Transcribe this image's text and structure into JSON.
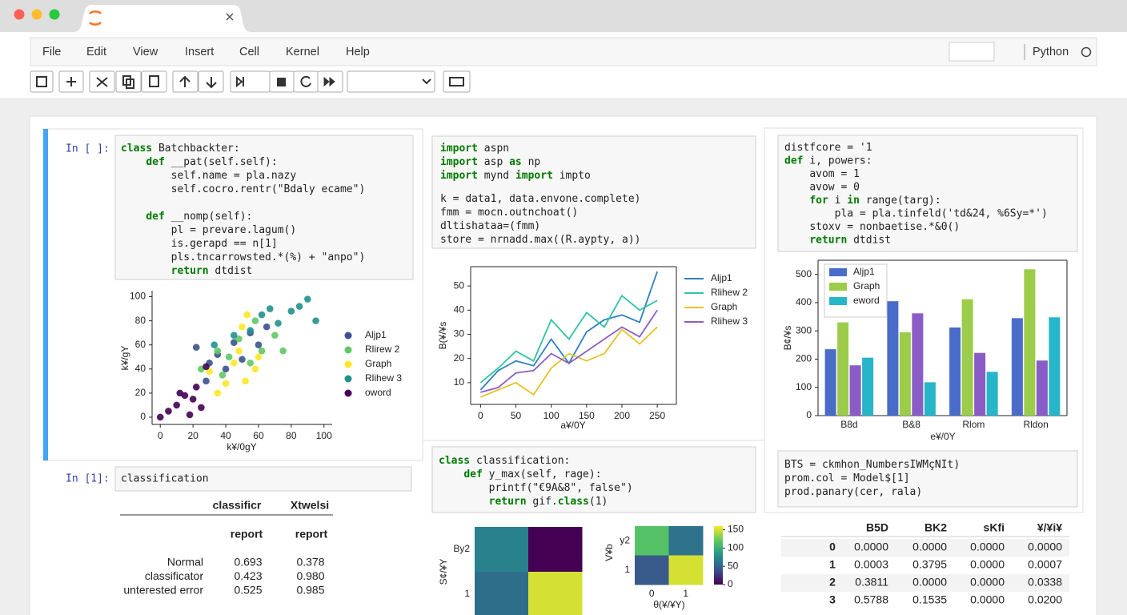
{
  "menu": [
    "File",
    "Edit",
    "View",
    "Insert",
    "Cell",
    "Kernel",
    "Help"
  ],
  "kernel": "Python",
  "cells": [
    {
      "prompt": "In [ ]:",
      "code": [
        [
          "class Batchbackter:",
          "    def __pat(self.self):",
          "        self.name = pla.nazy",
          "        self.cocro.rentr(\"Bdaly ecame\")"
        ],
        [
          "    def __nomp(self):",
          "        pl = prevare.lagum()",
          "        is.gerapd == n[1]",
          "        pls.tncarrowsted.*(%) + \"anpo\")",
          "        return dtdist"
        ]
      ]
    },
    {
      "code": [
        [
          "import aspn",
          "import asp as np",
          "import mynd import impto"
        ],
        [
          "k = data1, data.envone.complete)",
          "fmm = mocn.outnchoat()",
          "dltishataa=(fmm)",
          "store = nrnadd.max((R.aypty, a))"
        ]
      ]
    },
    {
      "code": [
        [
          "distfcore = '1",
          "def i, powers:",
          "    avom = 1",
          "    avow = 0",
          "    for i in range(targ):",
          "        pla = pla.tinfeld('td&24, %6Sy=*')",
          "    stoxv = nonbaetise.*&0()",
          "    return dtdist"
        ]
      ]
    },
    {
      "prompt": "In [1]:",
      "input": "classification"
    },
    {
      "code": [
        [
          "class classification:",
          "    def y_max(self, rage):",
          "        printf(\"€9A&8\", false\")",
          "        return gif.class(1)"
        ]
      ]
    },
    {
      "code": [
        [
          "BTS = ckmhon_NumbersIWMçNIt)",
          "prom.col = Model$[1]",
          "prod.panary(cer, rala)"
        ]
      ]
    }
  ],
  "report_table": {
    "columns": [
      "classificr",
      "Xtwelsi"
    ],
    "subheader": [
      "report",
      "report"
    ],
    "rows": [
      [
        "Normal",
        "0.693",
        "0.378"
      ],
      [
        "classificator",
        "0.423",
        "0.980"
      ],
      [
        "unterested error",
        "0.525",
        "0.985"
      ]
    ]
  },
  "data_table": {
    "columns": [
      "B5D",
      "BK2",
      "sKfi",
      "¥/¥i¥"
    ],
    "rows": [
      [
        "0",
        "0.0000",
        "0.0000",
        "0.0000",
        "0.0000"
      ],
      [
        "1",
        "0.0003",
        "0.3795",
        "0.0000",
        "0.0007"
      ],
      [
        "2",
        "0.3811",
        "0.0000",
        "0.0000",
        "0.0338"
      ],
      [
        "3",
        "0.5788",
        "0.1535",
        "0.0000",
        "0.0200"
      ]
    ]
  },
  "chart_data": [
    {
      "type": "scatter",
      "xlabel": "k¥/0gY",
      "ylabel": "k¥/gY",
      "xlim": [
        -5,
        105
      ],
      "ylim": [
        -6,
        105
      ],
      "xticks": [
        0,
        20,
        40,
        60,
        80,
        100
      ],
      "yticks": [
        0,
        20,
        40,
        60,
        80,
        100
      ],
      "series": [
        {
          "name": "Aljp1",
          "color": "#3b528b",
          "x": [
            22,
            30,
            35,
            45,
            50,
            55,
            60,
            65,
            40,
            28
          ],
          "y": [
            58,
            45,
            52,
            62,
            48,
            70,
            60,
            75,
            40,
            30
          ]
        },
        {
          "name": "Rlirew 2",
          "color": "#5ec962",
          "x": [
            25,
            35,
            42,
            48,
            55,
            62,
            70,
            58,
            38,
            75
          ],
          "y": [
            40,
            55,
            50,
            65,
            45,
            55,
            68,
            80,
            35,
            55
          ]
        },
        {
          "name": "Graph",
          "color": "#fde725",
          "x": [
            30,
            40,
            48,
            50,
            53,
            45,
            60,
            35,
            58,
            52
          ],
          "y": [
            38,
            28,
            55,
            75,
            85,
            45,
            50,
            20,
            40,
            30
          ]
        },
        {
          "name": "Rlihew 3",
          "color": "#21918c",
          "x": [
            33,
            45,
            55,
            62,
            72,
            80,
            85,
            90,
            67,
            95
          ],
          "y": [
            60,
            68,
            72,
            85,
            78,
            88,
            92,
            98,
            90,
            80
          ]
        },
        {
          "name": "oword",
          "color": "#440154",
          "x": [
            0,
            5,
            10,
            15,
            20,
            22,
            25,
            18,
            12,
            28
          ],
          "y": [
            0,
            5,
            10,
            18,
            15,
            25,
            8,
            2,
            20,
            42
          ]
        }
      ]
    },
    {
      "type": "line",
      "xlabel": "a¥/0Y",
      "ylabel": "B(¥/¥s",
      "xlim": [
        -14,
        277
      ],
      "ylim": [
        1,
        58
      ],
      "xticks": [
        0,
        50,
        100,
        150,
        200,
        250
      ],
      "yticks": [
        10,
        20,
        30,
        40,
        50
      ],
      "x": [
        0,
        25,
        50,
        75,
        100,
        125,
        150,
        175,
        200,
        225,
        250
      ],
      "series": [
        {
          "name": "Aljp1",
          "color": "#2f7fc1",
          "values": [
            7,
            15,
            19,
            17,
            28,
            18,
            31,
            36,
            38,
            35,
            56
          ]
        },
        {
          "name": "Rlihew 2",
          "color": "#2ec4a0",
          "values": [
            10,
            16,
            23,
            19,
            36,
            28,
            39,
            33,
            46,
            40,
            44
          ]
        },
        {
          "name": "Graph",
          "color": "#e6c229",
          "values": [
            4,
            7,
            10,
            5,
            16,
            22,
            19,
            22,
            32,
            26,
            33
          ]
        },
        {
          "name": "Rlihew 3",
          "color": "#8c5fc0",
          "values": [
            6,
            8,
            14,
            15,
            22,
            18,
            23,
            28,
            33,
            29,
            40
          ]
        }
      ]
    },
    {
      "type": "bar",
      "xlabel": "e¥/0Y",
      "ylabel": "B¢/¥s",
      "ylim": [
        0,
        550
      ],
      "yticks": [
        0,
        100,
        200,
        300,
        400,
        500
      ],
      "categories": [
        "B8d",
        "B&8",
        "Rlom",
        "Rldon"
      ],
      "series": [
        {
          "name": "Aljp1",
          "color": "#4a6cc9",
          "values": [
            235,
            405,
            312,
            345
          ]
        },
        {
          "name": "Graph",
          "color": "#9ccc4a",
          "values": [
            330,
            295,
            412,
            518
          ]
        },
        {
          "color": "#8a5cc6",
          "values": [
            178,
            362,
            222,
            195
          ]
        },
        {
          "name": "eword",
          "color": "#26b5c9",
          "values": [
            205,
            118,
            155,
            348
          ]
        }
      ]
    },
    {
      "type": "heatmap",
      "ylabel": "S¢/¥Y",
      "y_categories": [
        "By2",
        1
      ],
      "clim": [
        0,
        160
      ],
      "values": [
        [
          70,
          0
        ],
        [
          58,
          150
        ]
      ]
    },
    {
      "type": "heatmap",
      "xlabel": "θ(¥/¥Y)",
      "ylabel": "V¥b",
      "x_categories": [
        0,
        1
      ],
      "y_categories": [
        "y2",
        1
      ],
      "clim": [
        0,
        160
      ],
      "colorbar_ticks": [
        0,
        50,
        100,
        150
      ],
      "values": [
        [
          115,
          60
        ],
        [
          45,
          150
        ]
      ]
    }
  ]
}
